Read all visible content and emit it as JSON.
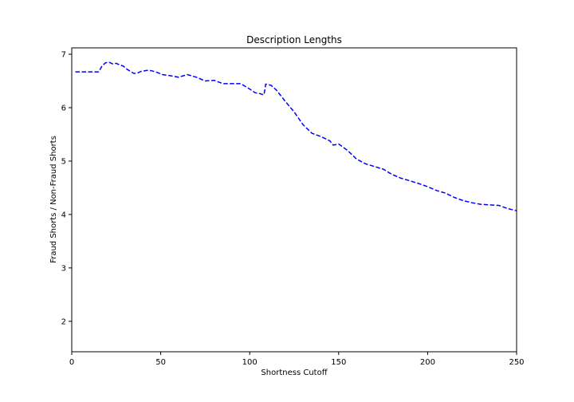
{
  "chart_data": {
    "type": "line",
    "title": "Description Lengths",
    "xlabel": "Shortness Cutoff",
    "ylabel": "Fraud Shorts / Non-Fraud Shorts",
    "xlim": [
      0,
      250
    ],
    "ylim": [
      1.43,
      7.12
    ],
    "xticks": [
      0,
      50,
      100,
      150,
      200,
      250
    ],
    "yticks": [
      2,
      3,
      4,
      5,
      6,
      7
    ],
    "grid": false,
    "series": [
      {
        "color": "#0000ff",
        "linestyle": "dashed",
        "x": [
          2,
          5,
          10,
          15,
          16,
          17,
          19,
          21,
          23,
          25,
          27,
          29,
          31,
          33,
          35,
          37,
          39,
          41,
          43,
          45,
          48,
          51,
          55,
          60,
          65,
          70,
          75,
          80,
          85,
          90,
          95,
          100,
          103,
          105,
          107,
          108,
          109,
          112,
          115,
          120,
          125,
          130,
          135,
          140,
          145,
          147,
          150,
          155,
          160,
          165,
          170,
          175,
          180,
          185,
          190,
          195,
          200,
          205,
          210,
          215,
          220,
          225,
          230,
          235,
          240,
          245,
          250
        ],
        "y": [
          6.67,
          6.67,
          6.67,
          6.67,
          6.72,
          6.78,
          6.84,
          6.85,
          6.82,
          6.83,
          6.8,
          6.78,
          6.72,
          6.68,
          6.64,
          6.65,
          6.68,
          6.69,
          6.7,
          6.69,
          6.66,
          6.62,
          6.6,
          6.57,
          6.62,
          6.57,
          6.5,
          6.51,
          6.45,
          6.45,
          6.45,
          6.35,
          6.28,
          6.27,
          6.25,
          6.24,
          6.44,
          6.42,
          6.33,
          6.12,
          5.92,
          5.68,
          5.52,
          5.46,
          5.38,
          5.3,
          5.32,
          5.2,
          5.04,
          4.95,
          4.9,
          4.85,
          4.75,
          4.68,
          4.63,
          4.58,
          4.52,
          4.45,
          4.4,
          4.32,
          4.26,
          4.22,
          4.19,
          4.18,
          4.17,
          4.11,
          4.07
        ]
      }
    ]
  }
}
